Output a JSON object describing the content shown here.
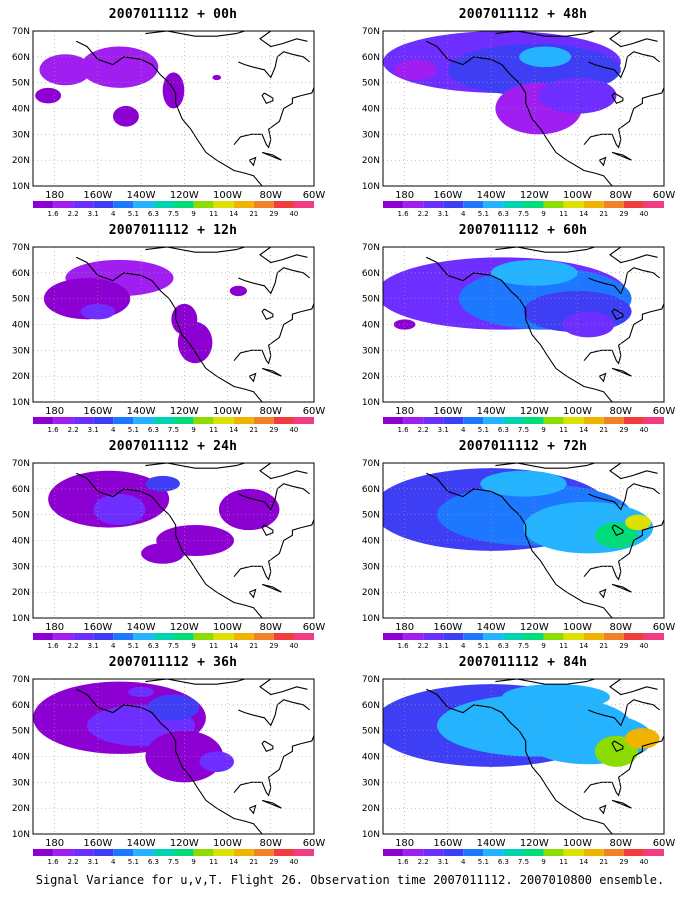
{
  "caption": "Signal Variance for u,v,T. Flight 26. Observation time 2007011112. 2007010800 ensemble.",
  "chart_data": {
    "type": "heatmap",
    "panel_titles": [
      "2007011112 + 00h",
      "2007011112 + 12h",
      "2007011112 + 24h",
      "2007011112 + 36h",
      "2007011112 + 48h",
      "2007011112 + 60h",
      "2007011112 + 72h",
      "2007011112 + 84h"
    ],
    "lead_hours": [
      0,
      12,
      24,
      36,
      48,
      60,
      72,
      84
    ],
    "x_ticks": [
      "180",
      "160W",
      "140W",
      "120W",
      "100W",
      "80W",
      "60W"
    ],
    "y_ticks": [
      "10N",
      "20N",
      "30N",
      "40N",
      "50N",
      "60N",
      "70N"
    ],
    "xlim": [
      -190,
      -60
    ],
    "ylim": [
      10,
      70
    ],
    "colorbar_levels": [
      "1.6",
      "2.2",
      "3.1",
      "4",
      "5.1",
      "6.3",
      "7.5",
      "9",
      "11",
      "14",
      "21",
      "29",
      "40"
    ],
    "colorbar_colors": [
      "#8c00d2",
      "#a01ef0",
      "#6e2eff",
      "#3e3ef5",
      "#1e78ff",
      "#24b4ff",
      "#00d2b4",
      "#00dc78",
      "#8cdc00",
      "#dce100",
      "#f0b400",
      "#f08228",
      "#f03c3c",
      "#f03c82"
    ],
    "grid": true
  }
}
